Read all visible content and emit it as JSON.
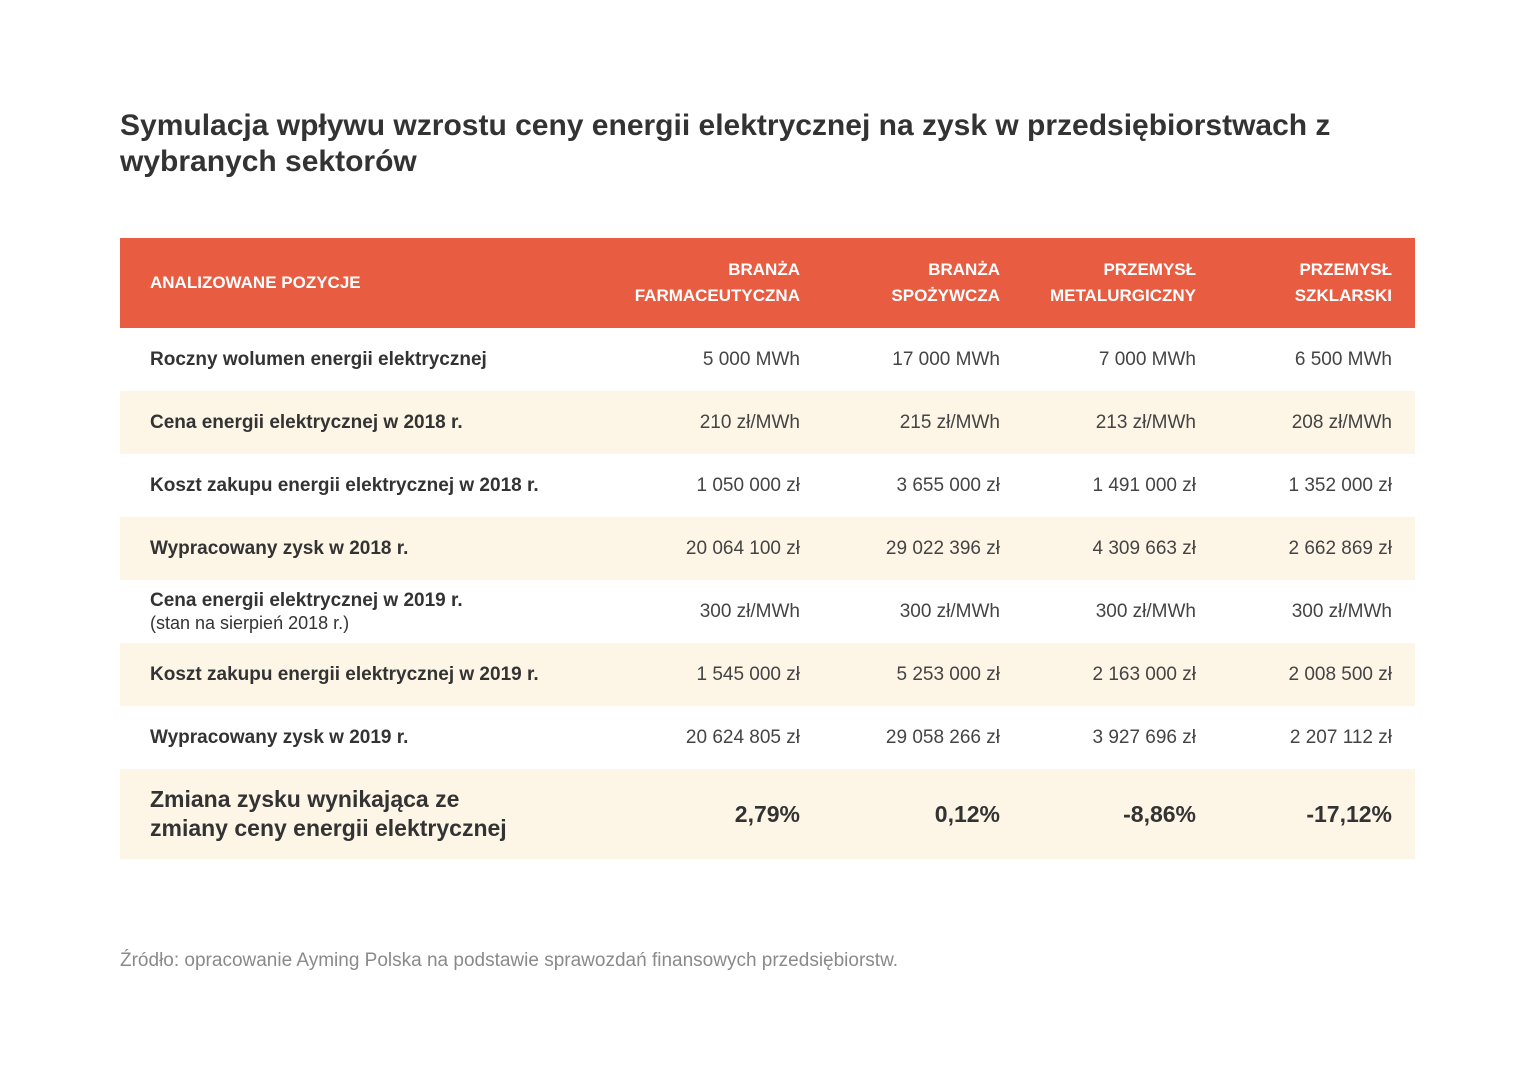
{
  "title": "Symulacja wpływu wzrostu ceny energii elektrycznej na zysk w przedsiębiorstwach z wybranych sektorów",
  "colors": {
    "header": "#E85C42",
    "stripe": "#FDF5E6",
    "text": "#333333"
  },
  "table": {
    "headers": [
      {
        "line1": "",
        "line2": "ANALIZOWANE POZYCJE"
      },
      {
        "line1": "BRANŻA",
        "line2": "FARMACEUTYCZNA"
      },
      {
        "line1": "BRANŻA",
        "line2": "SPOŻYWCZA"
      },
      {
        "line1": "PRZEMYSŁ",
        "line2": "METALURGICZNY"
      },
      {
        "line1": "PRZEMYSŁ",
        "line2": "SZKLARSKI"
      }
    ],
    "rows": [
      {
        "label": "Roczny wolumen energii elektrycznej",
        "note": "",
        "values": [
          "5 000 MWh",
          "17 000 MWh",
          "7 000 MWh",
          "6 500 MWh"
        ]
      },
      {
        "label": "Cena energii elektrycznej w 2018 r.",
        "note": "",
        "values": [
          "210 zł/MWh",
          "215 zł/MWh",
          "213 zł/MWh",
          "208 zł/MWh"
        ]
      },
      {
        "label": "Koszt zakupu energii elektrycznej w 2018 r.",
        "note": "",
        "values": [
          "1 050 000 zł",
          "3 655 000 zł",
          "1 491 000 zł",
          "1 352 000 zł"
        ]
      },
      {
        "label": "Wypracowany zysk w 2018 r.",
        "note": "",
        "values": [
          "20 064 100 zł",
          "29 022 396 zł",
          "4 309 663 zł",
          "2 662 869 zł"
        ]
      },
      {
        "label": "Cena energii elektrycznej w 2019 r.",
        "note": "(stan na sierpień 2018 r.)",
        "values": [
          "300 zł/MWh",
          "300 zł/MWh",
          "300 zł/MWh",
          "300 zł/MWh"
        ]
      },
      {
        "label": "Koszt zakupu energii elektrycznej w 2019 r.",
        "note": "",
        "values": [
          "1 545 000 zł",
          "5 253 000 zł",
          "2 163 000 zł",
          "2 008 500 zł"
        ]
      },
      {
        "label": "Wypracowany zysk w 2019 r.",
        "note": "",
        "values": [
          "20 624 805 zł",
          "29 058 266 zł",
          "3 927 696 zł",
          "2 207 112 zł"
        ]
      }
    ],
    "total": {
      "line1": "Zmiana zysku wynikająca ze",
      "line2": "zmiany ceny energii elektrycznej",
      "values": [
        "2,79%",
        "0,12%",
        "-8,86%",
        "-17,12%"
      ]
    }
  },
  "source": "Źródło: opracowanie Ayming Polska na podstawie sprawozdań finansowych przedsiębiorstw."
}
